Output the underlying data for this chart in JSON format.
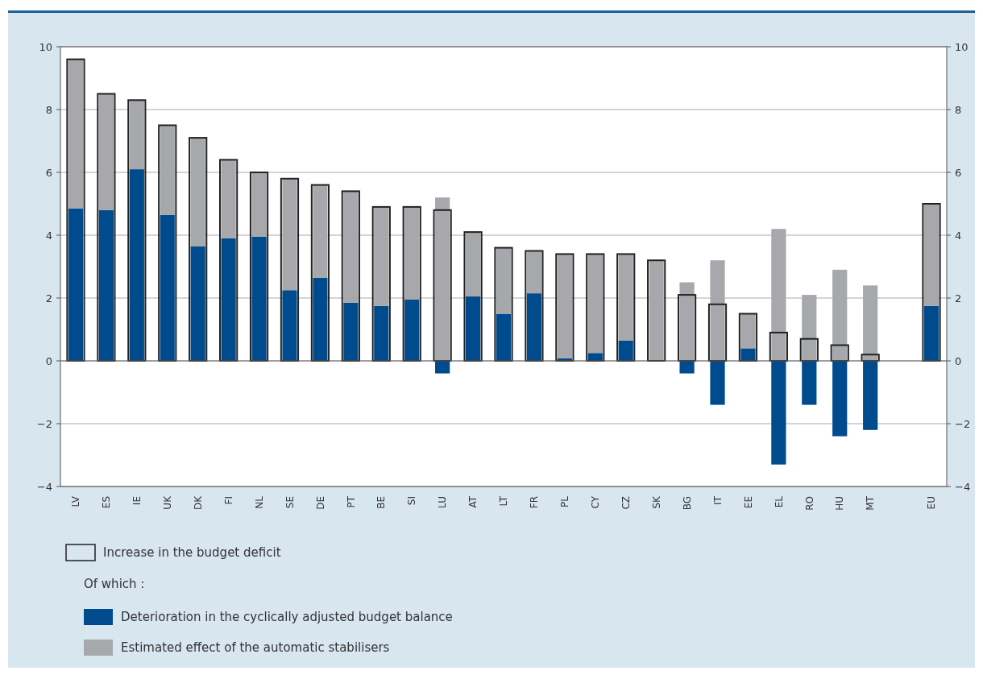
{
  "chart_data": {
    "type": "bar",
    "stacked": true,
    "categories": [
      "LV",
      "ES",
      "IE",
      "UK",
      "DK",
      "FI",
      "NL",
      "SE",
      "DE",
      "PT",
      "BE",
      "SI",
      "LU",
      "AT",
      "LT",
      "FR",
      "PL",
      "CY",
      "CZ",
      "SK",
      "BG",
      "IT",
      "EE",
      "EL",
      "RO",
      "HU",
      "MT",
      null,
      "EU"
    ],
    "series": [
      {
        "name": "Deterioration in the cyclically adjusted budget balance",
        "color": "#004b8d",
        "values": [
          4.85,
          4.8,
          6.1,
          4.65,
          3.65,
          3.9,
          3.95,
          2.25,
          2.65,
          1.85,
          1.75,
          1.95,
          -0.4,
          2.05,
          1.5,
          2.15,
          0.08,
          0.25,
          0.65,
          0,
          -0.4,
          -1.4,
          0.4,
          -3.3,
          -1.4,
          -2.4,
          -2.2,
          null,
          1.75
        ]
      },
      {
        "name": "Estimated effect of the automatic stabilisers",
        "color": "#a6a8ab",
        "values": [
          4.75,
          3.7,
          2.2,
          2.85,
          3.45,
          2.5,
          2.05,
          3.55,
          2.95,
          3.55,
          3.15,
          2.95,
          5.2,
          2.05,
          2.1,
          1.35,
          3.32,
          3.15,
          2.75,
          3.2,
          2.5,
          3.2,
          1.1,
          4.2,
          2.1,
          2.9,
          2.4,
          null,
          3.25
        ]
      },
      {
        "name": "Increase in the budget deficit",
        "axis": "y2",
        "color": "#222222",
        "values": [
          9.6,
          8.5,
          8.3,
          7.5,
          7.1,
          6.4,
          6.0,
          5.8,
          5.6,
          5.4,
          4.9,
          4.9,
          4.8,
          4.1,
          3.6,
          3.5,
          3.4,
          3.4,
          3.4,
          3.2,
          2.1,
          1.8,
          1.5,
          0.9,
          0.7,
          0.5,
          0.2,
          null,
          5.0
        ]
      }
    ],
    "ylim": [
      -4,
      10
    ],
    "yticks": [
      {
        "value": -4,
        "label": "−4"
      },
      {
        "value": -2,
        "label": "−2"
      },
      0,
      2,
      4,
      6,
      8,
      10
    ],
    "y2lim": [
      -4,
      10
    ],
    "y2ticks": [
      {
        "value": -4,
        "label": "−4"
      },
      {
        "value": -2,
        "label": "−2"
      },
      0,
      2,
      4,
      6,
      8,
      10
    ],
    "grid": "y",
    "legend": "bottom",
    "annotations": [
      "Of which :"
    ]
  }
}
